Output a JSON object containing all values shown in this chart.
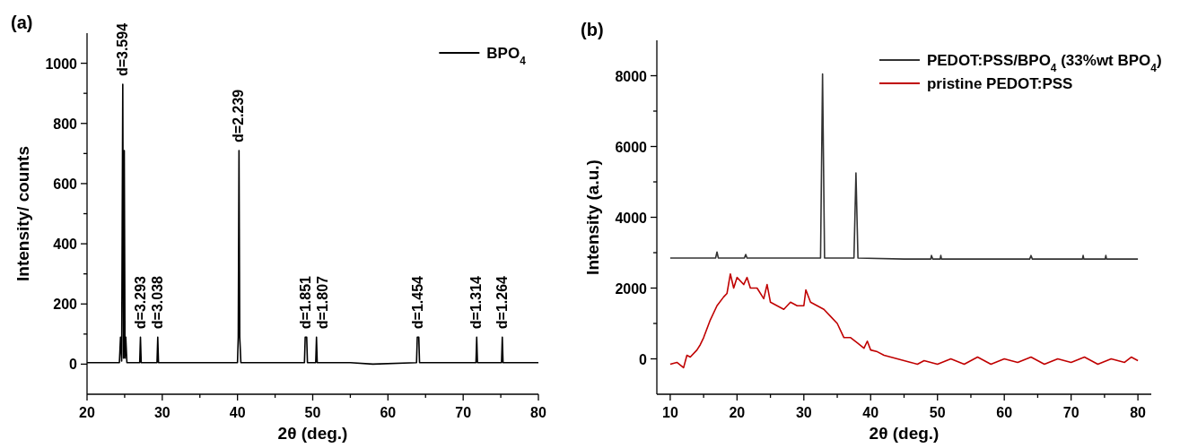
{
  "chart_data": [
    {
      "type": "line",
      "title": "(a)",
      "xlabel": "2θ (deg.)",
      "ylabel": "Intensity/ counts",
      "xlim": [
        20,
        80
      ],
      "ylim": [
        -100,
        1100
      ],
      "xticks": [
        20,
        {
          "value": 25,
          "label": null
        },
        30,
        {
          "value": 35,
          "label": null
        },
        40,
        {
          "value": 45,
          "label": null
        },
        50,
        {
          "value": 55,
          "label": null
        },
        60,
        {
          "value": 65,
          "label": null
        },
        70,
        {
          "value": 75,
          "label": null
        },
        80
      ],
      "yticks": [
        0,
        {
          "value": 100,
          "label": null
        },
        200,
        {
          "value": 300,
          "label": null
        },
        400,
        {
          "value": 500,
          "label": null
        },
        600,
        {
          "value": 700,
          "label": null
        },
        800,
        {
          "value": 900,
          "label": null
        },
        1000
      ],
      "legend": "top right",
      "grid": false,
      "marker": "none",
      "line_style": "solid",
      "series": [
        {
          "name": "BPO$_{4}$",
          "color": "#000000",
          "x": [
            20,
            22,
            24.3,
            24.45,
            24.6,
            24.75,
            24.85,
            24.95,
            25.05,
            25.15,
            25.3,
            27.0,
            27.1,
            27.2,
            29.3,
            29.4,
            29.5,
            33,
            36,
            40.0,
            40.1,
            40.2,
            40.3,
            40.45,
            44,
            48.9,
            49.0,
            49.2,
            49.3,
            50.4,
            50.5,
            50.6,
            55,
            58,
            63.8,
            63.9,
            64.1,
            64.2,
            68,
            71.7,
            71.8,
            71.9,
            75.1,
            75.2,
            75.3,
            80
          ],
          "values": [
            5,
            5,
            5,
            90,
            10,
            930,
            20,
            710,
            20,
            90,
            5,
            5,
            90,
            5,
            5,
            90,
            5,
            5,
            5,
            5,
            90,
            710,
            90,
            5,
            5,
            5,
            90,
            90,
            5,
            5,
            90,
            5,
            5,
            0,
            5,
            90,
            90,
            5,
            5,
            5,
            90,
            5,
            5,
            90,
            5,
            5
          ]
        }
      ],
      "annotations": [
        {
          "text": "d=3.594",
          "x": 24.75,
          "y": 930
        },
        {
          "text": "d=3.293",
          "x": 27.1,
          "y": 90
        },
        {
          "text": "d=3.038",
          "x": 29.4,
          "y": 90
        },
        {
          "text": "d=2.239",
          "x": 40.2,
          "y": 710
        },
        {
          "text": "d=1.851",
          "x": 49.1,
          "y": 90
        },
        {
          "text": "d=1.807",
          "x": 50.5,
          "y": 90
        },
        {
          "text": "d=1.454",
          "x": 64.0,
          "y": 90
        },
        {
          "text": "d=1.314",
          "x": 71.8,
          "y": 90
        },
        {
          "text": "d=1.264",
          "x": 75.2,
          "y": 90
        }
      ]
    },
    {
      "type": "line",
      "title": "(b)",
      "xlabel": "2θ (deg.)",
      "ylabel": "Intensity (a.u.)",
      "xlim": [
        8,
        82
      ],
      "ylim": [
        -1000,
        9000
      ],
      "xticks": [
        10,
        {
          "value": 15,
          "label": null
        },
        20,
        {
          "value": 25,
          "label": null
        },
        30,
        {
          "value": 35,
          "label": null
        },
        40,
        {
          "value": 45,
          "label": null
        },
        50,
        {
          "value": 55,
          "label": null
        },
        60,
        {
          "value": 65,
          "label": null
        },
        70,
        {
          "value": 75,
          "label": null
        },
        80
      ],
      "yticks": [
        0,
        {
          "value": 1000,
          "label": null
        },
        2000,
        {
          "value": 3000,
          "label": null
        },
        4000,
        {
          "value": 5000,
          "label": null
        },
        6000,
        {
          "value": 7000,
          "label": null
        },
        8000
      ],
      "legend": "top right",
      "grid": false,
      "marker": "none",
      "line_style": "solid",
      "series": [
        {
          "name": "PEDOT:PSS/BPO$_{4}$ (33%wt BPO$_{4}$)",
          "color": "#333333",
          "x": [
            10,
            16.8,
            17.0,
            17.2,
            21.1,
            21.3,
            21.5,
            25,
            32.5,
            32.8,
            33.1,
            37.5,
            37.8,
            38.1,
            45,
            49.0,
            49.1,
            49.3,
            50.4,
            50.5,
            50.6,
            63.8,
            64.0,
            64.2,
            71.7,
            71.8,
            71.9,
            75.1,
            75.2,
            75.3,
            80
          ],
          "values": [
            2850,
            2850,
            3020,
            2850,
            2850,
            2950,
            2850,
            2850,
            2850,
            8050,
            2850,
            2850,
            5250,
            2850,
            2820,
            2820,
            2920,
            2820,
            2820,
            2920,
            2820,
            2820,
            2920,
            2820,
            2820,
            2920,
            2820,
            2820,
            2920,
            2820,
            2820
          ]
        },
        {
          "name": "pristine PEDOT:PSS",
          "color": "#c00000",
          "x": [
            10,
            11,
            12,
            12.5,
            13,
            14,
            14.5,
            15,
            16,
            17,
            18,
            18.5,
            19,
            19.5,
            20,
            21,
            21.5,
            22,
            23,
            24,
            24.5,
            25,
            26,
            27,
            28,
            29,
            30,
            30.3,
            31,
            32,
            33,
            34,
            35,
            36,
            37,
            38,
            39,
            39.5,
            40,
            41,
            42,
            43,
            44,
            45,
            46,
            47,
            48,
            50,
            52,
            54,
            56,
            58,
            60,
            62,
            64,
            66,
            68,
            70,
            72,
            74,
            76,
            78,
            79,
            80
          ],
          "values": [
            -150,
            -100,
            -250,
            100,
            50,
            250,
            400,
            600,
            1100,
            1500,
            1750,
            1850,
            2400,
            2000,
            2300,
            2100,
            2300,
            2000,
            2000,
            1700,
            2100,
            1600,
            1500,
            1400,
            1600,
            1500,
            1500,
            1950,
            1600,
            1500,
            1400,
            1200,
            1000,
            600,
            600,
            450,
            300,
            500,
            250,
            200,
            100,
            50,
            0,
            -50,
            -100,
            -150,
            -50,
            -150,
            0,
            -150,
            50,
            -150,
            0,
            -100,
            50,
            -150,
            0,
            -100,
            50,
            -150,
            0,
            -100,
            50,
            -50
          ]
        }
      ]
    }
  ]
}
